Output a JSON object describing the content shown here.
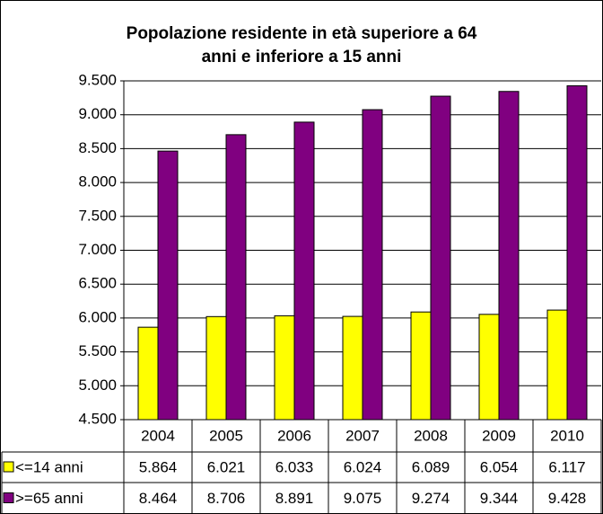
{
  "chart_data": {
    "type": "bar",
    "title": [
      "Popolazione residente in età superiore a 64",
      "anni e inferiore a 15 anni"
    ],
    "categories": [
      "2004",
      "2005",
      "2006",
      "2007",
      "2008",
      "2009",
      "2010"
    ],
    "series": [
      {
        "name": "<=14 anni",
        "color": "#ffff00",
        "values": [
          5864,
          6021,
          6033,
          6024,
          6089,
          6054,
          6117
        ],
        "value_labels": [
          "5.864",
          "6.021",
          "6.033",
          "6.024",
          "6.089",
          "6.054",
          "6.117"
        ]
      },
      {
        "name": ">=65 anni",
        "color": "#800080",
        "values": [
          8464,
          8706,
          8891,
          9075,
          9274,
          9344,
          9428
        ],
        "value_labels": [
          "8.464",
          "8.706",
          "8.891",
          "9.075",
          "9.274",
          "9.344",
          "9.428"
        ]
      }
    ],
    "ylim": [
      4500,
      9500
    ],
    "yticks": [
      {
        "value": 4500,
        "label": "4.500"
      },
      {
        "value": 5000,
        "label": "5.000"
      },
      {
        "value": 5500,
        "label": "5.500"
      },
      {
        "value": 6000,
        "label": "6.000"
      },
      {
        "value": 6500,
        "label": "6.500"
      },
      {
        "value": 7000,
        "label": "7.000"
      },
      {
        "value": 7500,
        "label": "7.500"
      },
      {
        "value": 8000,
        "label": "8.000"
      },
      {
        "value": 8500,
        "label": "8.500"
      },
      {
        "value": 9000,
        "label": "9.000"
      },
      {
        "value": 9500,
        "label": "9.500"
      }
    ],
    "grid": true
  }
}
